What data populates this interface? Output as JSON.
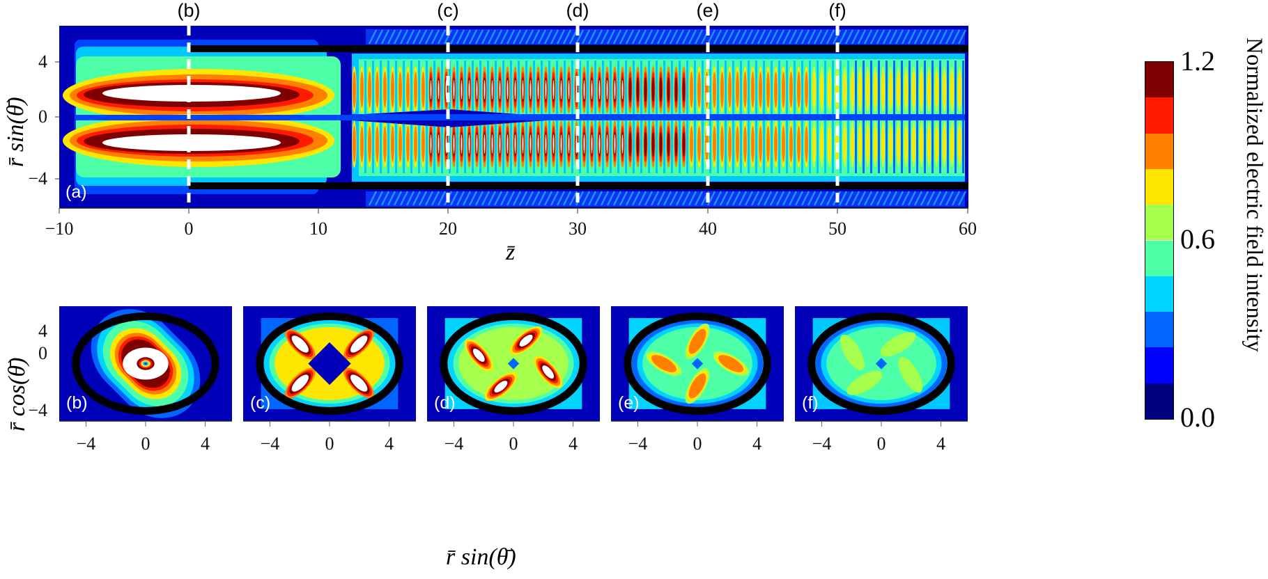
{
  "figure": {
    "top_markers": [
      "(b)",
      "(c)",
      "(d)",
      "(e)",
      "(f)"
    ],
    "top_panel_label": "(a)",
    "top_xlabel": "z̄",
    "top_ylabel": "r̄ sin(θ̄)",
    "top_xticks": [
      "−10",
      "0",
      "10",
      "20",
      "30",
      "40",
      "50",
      "60"
    ],
    "top_yticks": [
      "4",
      "0",
      "−4"
    ],
    "bottom_panel_labels": [
      "(b)",
      "(c)",
      "(d)",
      "(e)",
      "(f)"
    ],
    "bottom_xticks": [
      "−4",
      "0",
      "4"
    ],
    "bottom_yticks": [
      "4",
      "0",
      "−4"
    ],
    "bottom_xlabel": "r̄ sin(θ̄)",
    "bottom_ylabel": "r̄ cos(θ̄)",
    "colorbar": {
      "title": "Normalized electric field intensity",
      "tick_labels": [
        "1.2",
        "0.6",
        "0.0"
      ],
      "colors": [
        "#7f0000",
        "#ff1a00",
        "#ff8000",
        "#ffe600",
        "#a6ff4d",
        "#4dffa6",
        "#00d4ff",
        "#0066ff",
        "#0000ff",
        "#00007f"
      ]
    }
  },
  "chart_data": [
    {
      "type": "heatmap",
      "panel": "(a)",
      "title": "",
      "xlabel": "z̄",
      "ylabel": "r̄ sin(θ̄)",
      "xlim": [
        -10,
        60
      ],
      "ylim": [
        -6,
        6
      ],
      "xticks": [
        -10,
        0,
        10,
        20,
        30,
        40,
        50,
        60
      ],
      "yticks": [
        -4,
        0,
        4
      ],
      "annotations": [
        {
          "label": "(b)",
          "z": 0,
          "style": "white dashed vertical line"
        },
        {
          "label": "(c)",
          "z": 20,
          "style": "white dashed vertical line"
        },
        {
          "label": "(d)",
          "z": 30,
          "style": "white dashed vertical line"
        },
        {
          "label": "(e)",
          "z": 40,
          "style": "white dashed vertical line"
        },
        {
          "label": "(f)",
          "z": 50,
          "style": "white dashed vertical line"
        }
      ],
      "waveguide_walls": {
        "r": [
          4.5,
          -4.5
        ],
        "z_start": 0,
        "z_end": 60,
        "color": "#000000"
      },
      "description": "Two intense lobes at r≈±1.7 saturating (>1.2, white) for z from -8 to 8; beyond z≈12 the field breaks into periodic oscillating fringes inside the walls, peak intensity decaying from ~1.2 at z=20-30 to ~0.6 by z=50-60."
    },
    {
      "type": "heatmap",
      "panel": "(b)",
      "z": 0,
      "xlabel": "r̄ sin(θ̄)",
      "ylabel": "r̄ cos(θ̄)",
      "xlim": [
        -5.8,
        5.8
      ],
      "ylim": [
        -5.8,
        5.8
      ],
      "description": "Ring of saturated intensity (>1.2) around center, minimum at origin; black circular wall r=4.5"
    },
    {
      "type": "heatmap",
      "panel": "(c)",
      "z": 20,
      "description": "Four saturated lobes at diagonal positions, low-intensity diamond at center"
    },
    {
      "type": "heatmap",
      "panel": "(d)",
      "z": 30,
      "description": "Four-arm pinwheel pattern with saturated spots, max ~1.2+"
    },
    {
      "type": "heatmap",
      "panel": "(e)",
      "z": 40,
      "description": "Four-arm cross pattern, peak ~0.96-1.08 (orange)"
    },
    {
      "type": "heatmap",
      "panel": "(f)",
      "z": 50,
      "description": "Pinwheel pattern, peak ~0.72-0.84 (light green)"
    },
    {
      "type": "colorbar",
      "title": "Normalized electric field intensity",
      "range": [
        0.0,
        1.2
      ],
      "levels": 10,
      "tick_labels": [
        0.0,
        0.6,
        1.2
      ]
    }
  ]
}
